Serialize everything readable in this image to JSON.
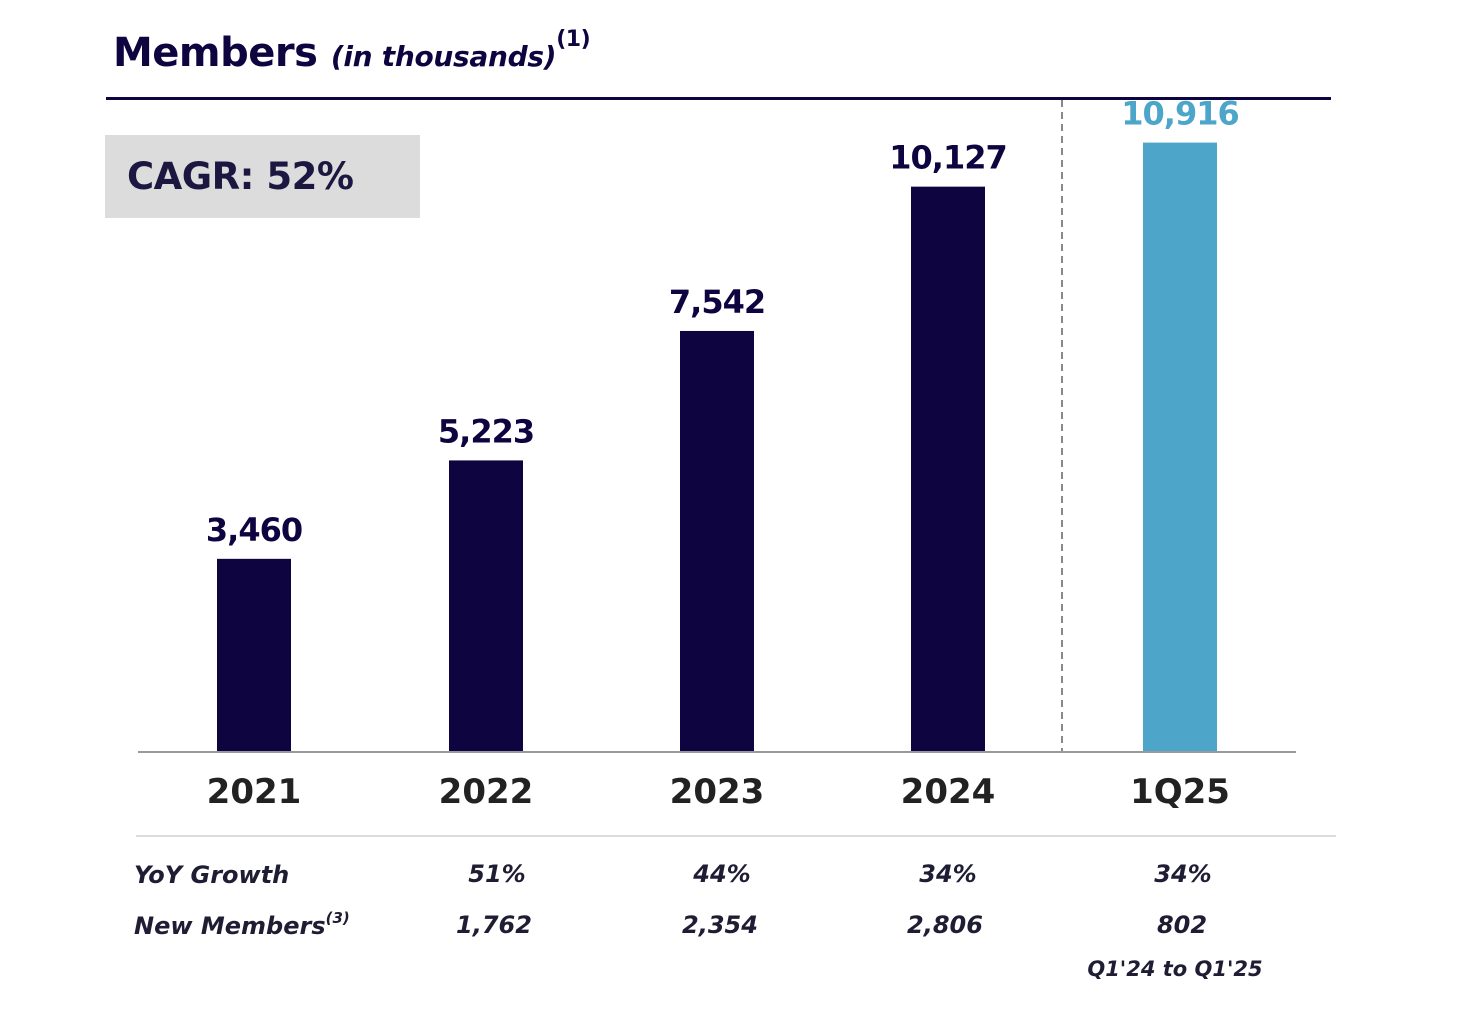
{
  "title": {
    "main": "Members",
    "sub": "(in thousands)",
    "footnote": "(1)"
  },
  "cagr": {
    "label": "CAGR: 52%"
  },
  "chart_data": {
    "type": "bar",
    "title": "Members (in thousands)",
    "categories": [
      "2021",
      "2022",
      "2023",
      "2024",
      "1Q25"
    ],
    "values": [
      3460,
      5223,
      7542,
      10127,
      10916
    ],
    "value_labels": [
      "3,460",
      "5,223",
      "7,542",
      "10,127",
      "10,916"
    ],
    "colors": [
      "#0d0440",
      "#0d0440",
      "#0d0440",
      "#0d0440",
      "#4da6c9"
    ],
    "label_colors": [
      "#0d0440",
      "#0d0440",
      "#0d0440",
      "#0d0440",
      "#4da6c9"
    ],
    "xlabel": "",
    "ylabel": "",
    "ylim": [
      0,
      11500
    ],
    "grid": false,
    "separator_before_index": 4
  },
  "table": {
    "rows": [
      {
        "label": "YoY Growth",
        "footnote": "",
        "values": [
          "51%",
          "44%",
          "34%",
          "34%"
        ]
      },
      {
        "label": "New Members",
        "footnote": "(3)",
        "values": [
          "1,762",
          "2,354",
          "2,806",
          "802"
        ]
      }
    ],
    "note": "Q1'24 to Q1'25"
  }
}
